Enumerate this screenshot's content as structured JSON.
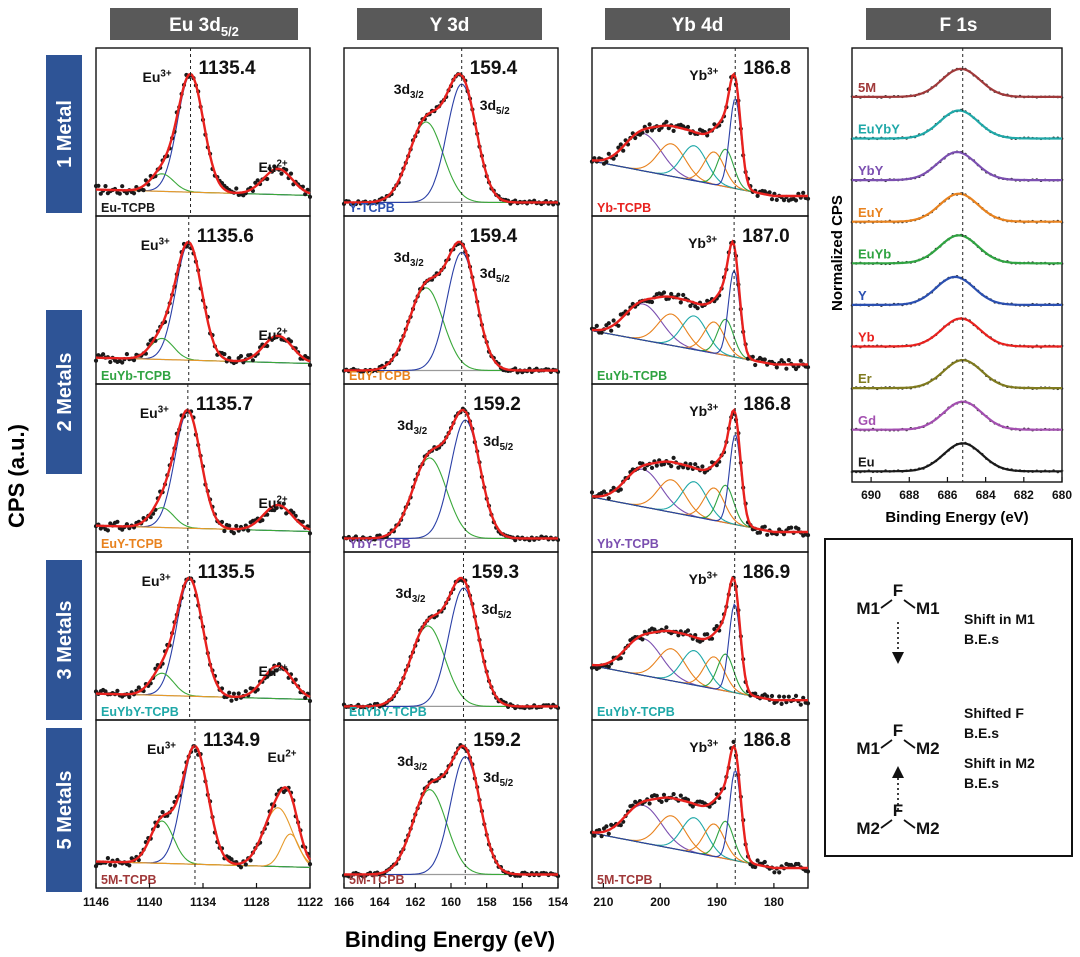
{
  "column_headers": [
    {
      "main": "Eu 3d",
      "sub": "5/2"
    },
    {
      "main": "Y 3d",
      "sub": ""
    },
    {
      "main": "Yb 4d",
      "sub": ""
    },
    {
      "main": "F 1s",
      "sub": ""
    }
  ],
  "row_labels": [
    "1 Metal",
    "2 Metals",
    "3 Metals",
    "5 Metals"
  ],
  "y_axis_title": "CPS (a.u.)",
  "x_axis_title": "Binding Energy (eV)",
  "eu_ion": "Eu",
  "eu_charge": "3+",
  "eu2_charge": "2+",
  "yb_ion": "Yb",
  "yb_charge": "3+",
  "y_peak_a": {
    "base": "3d",
    "sub": "3/2"
  },
  "y_peak_b": {
    "base": "3d",
    "sub": "5/2"
  },
  "colors": {
    "header_bg": "#595959",
    "row_bg": "#2e5496",
    "data_points": "#1a1a1a",
    "fit_envelope": "#e8211e",
    "background_line": "#9a9a9a",
    "eu3_component": "#2a3fa6",
    "eu_shoulder": "#3aa83a",
    "eu2_component": "#e69a2a",
    "y_3d32": "#3aa83a",
    "y_3d52": "#2a3fa6"
  },
  "chart_data": [
    {
      "type": "scatter",
      "panel": "Eu 3d5/2",
      "xlim": [
        1146,
        1122
      ],
      "xticks": [
        "1146",
        "1140",
        "1134",
        "1128",
        "1122"
      ],
      "peak_marker": [
        1135.4,
        1135.6,
        1135.7,
        1135.5,
        1134.9
      ],
      "series": [
        {
          "sample": "Eu-TCPB",
          "color": "#1a1a1a",
          "peak_label": "1135.4"
        },
        {
          "sample": "EuYb-TCPB",
          "color": "#2fa341",
          "peak_label": "1135.6"
        },
        {
          "sample": "EuY-TCPB",
          "color": "#e8821e",
          "peak_label": "1135.7"
        },
        {
          "sample": "EuYbY-TCPB",
          "color": "#1fa8a8",
          "peak_label": "1135.5"
        },
        {
          "sample": "5M-TCPB",
          "color": "#a0393a",
          "peak_label": "1134.9"
        }
      ]
    },
    {
      "type": "scatter",
      "panel": "Y 3d",
      "xlim": [
        166,
        154
      ],
      "xticks": [
        "166",
        "164",
        "162",
        "160",
        "158",
        "156",
        "154"
      ],
      "peak_marker": [
        159.4,
        159.4,
        159.2,
        159.3,
        159.2
      ],
      "series": [
        {
          "sample": "Y-TCPB",
          "color": "#2a4fb0",
          "peak_label": "159.4"
        },
        {
          "sample": "EuY-TCPB",
          "color": "#e8821e",
          "peak_label": "159.4"
        },
        {
          "sample": "YbY-TCPB",
          "color": "#7b4fb0",
          "peak_label": "159.2"
        },
        {
          "sample": "EuYbY-TCPB",
          "color": "#1fa8a8",
          "peak_label": "159.3"
        },
        {
          "sample": "5M-TCPB",
          "color": "#a0393a",
          "peak_label": "159.2"
        }
      ]
    },
    {
      "type": "scatter",
      "panel": "Yb 4d",
      "xlim": [
        212,
        174
      ],
      "xticks": [
        "210",
        "200",
        "190",
        "180"
      ],
      "peak_marker": [
        186.8,
        187.0,
        186.8,
        186.9,
        186.8
      ],
      "series": [
        {
          "sample": "Yb-TCPB",
          "color": "#e8211e",
          "peak_label": "186.8"
        },
        {
          "sample": "EuYb-TCPB",
          "color": "#2fa341",
          "peak_label": "187.0"
        },
        {
          "sample": "YbY-TCPB",
          "color": "#7b4fb0",
          "peak_label": "186.8"
        },
        {
          "sample": "EuYbY-TCPB",
          "color": "#1fa8a8",
          "peak_label": "186.9"
        },
        {
          "sample": "5M-TCPB",
          "color": "#a0393a",
          "peak_label": "186.8"
        }
      ]
    },
    {
      "type": "line",
      "panel": "F 1s",
      "xlim": [
        691,
        680
      ],
      "xticks": [
        "690",
        "688",
        "686",
        "684",
        "682",
        "680"
      ],
      "xlabel": "Binding Energy (eV)",
      "ylabel": "Normalized CPS",
      "peak_marker": 685.2,
      "series": [
        {
          "name": "5M",
          "color": "#a0393a",
          "center": 685.3
        },
        {
          "name": "EuYbY",
          "color": "#1fa8a8",
          "center": 685.4
        },
        {
          "name": "YbY",
          "color": "#7b4fb0",
          "center": 685.5
        },
        {
          "name": "EuY",
          "color": "#e8821e",
          "center": 685.4
        },
        {
          "name": "EuYb",
          "color": "#2fa341",
          "center": 685.4
        },
        {
          "name": "Y",
          "color": "#2a4fb0",
          "center": 685.6
        },
        {
          "name": "Yb",
          "color": "#e8211e",
          "center": 685.3
        },
        {
          "name": "Er",
          "color": "#7f7a1e",
          "center": 685.2
        },
        {
          "name": "Gd",
          "color": "#a34fb0",
          "center": 685.2
        },
        {
          "name": "Eu",
          "color": "#1a1a1a",
          "center": 685.2
        }
      ]
    }
  ],
  "diagram": {
    "top": {
      "left": "M1",
      "center": "F",
      "right": "M1"
    },
    "middle": {
      "left": "M1",
      "center": "F",
      "right": "M2"
    },
    "bottom": {
      "left": "M2",
      "center": "F",
      "right": "M2"
    },
    "note_top": [
      "Shift in M1",
      "B.E.s"
    ],
    "note_middle": [
      "Shifted F",
      "B.E.s"
    ],
    "note_bottom": [
      "Shift in M2",
      "B.E.s"
    ]
  }
}
